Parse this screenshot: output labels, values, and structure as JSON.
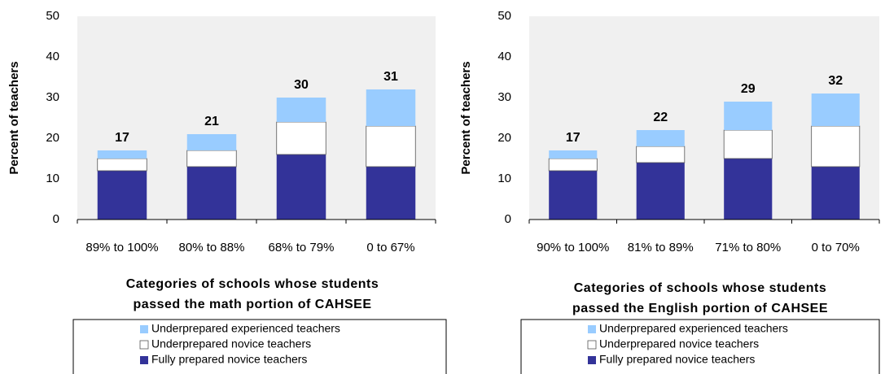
{
  "chart_data": [
    {
      "type": "stacked_bar",
      "categories": [
        "89% to 100%",
        "80% to 88%",
        "68% to 79%",
        "0 to 67%"
      ],
      "series": [
        {
          "name": "Fully prepared novice teachers",
          "color": "#333399",
          "values": [
            12,
            13,
            16,
            13
          ]
        },
        {
          "name": "Underprepared novice teachers",
          "color": "#ffffff",
          "values": [
            3,
            4,
            8,
            10
          ]
        },
        {
          "name": "Underprepared experienced teachers",
          "color": "#99ccff",
          "values": [
            2,
            4,
            6,
            9
          ]
        }
      ],
      "totals": [
        17,
        21,
        30,
        31
      ],
      "ylabel": "Percent of teachers",
      "xlabel": [
        "Categories of schools whose students",
        "passed the math portion of CAHSEE"
      ],
      "ylim": [
        0,
        50
      ],
      "yticks": [
        0,
        10,
        20,
        30,
        40,
        50
      ]
    },
    {
      "type": "stacked_bar",
      "categories": [
        "90% to 100%",
        "81% to 89%",
        "71% to 80%",
        "0 to 70%"
      ],
      "series": [
        {
          "name": "Fully prepared novice teachers",
          "color": "#333399",
          "values": [
            12,
            14,
            15,
            13
          ]
        },
        {
          "name": "Underprepared novice teachers",
          "color": "#ffffff",
          "values": [
            3,
            4,
            7,
            10
          ]
        },
        {
          "name": "Underprepared experienced teachers",
          "color": "#99ccff",
          "values": [
            2,
            4,
            7,
            8
          ]
        }
      ],
      "totals": [
        17,
        22,
        29,
        32
      ],
      "ylabel": "Percent of teachers",
      "xlabel": [
        "Categories of schools whose students",
        "passed the English portion of CAHSEE"
      ],
      "ylim": [
        0,
        50
      ],
      "yticks": [
        0,
        10,
        20,
        30,
        40,
        50
      ]
    }
  ]
}
